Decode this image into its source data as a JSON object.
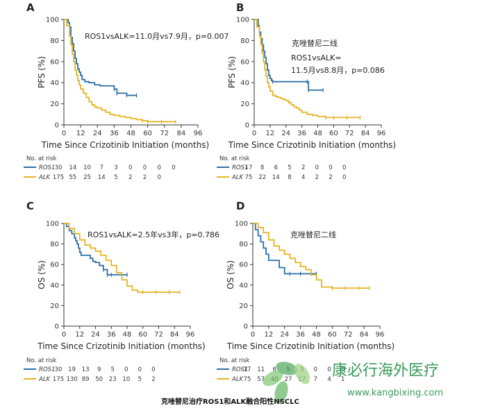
{
  "chart_data": [
    {
      "panel": "A",
      "type": "line",
      "xlabel": "Time Since Crizotinib Initiation (months)",
      "ylabel": "PFS (%)",
      "annotation_lines": [
        "ROS1vsALK=11.0月vs7.9月，p=0.007"
      ],
      "xlim": [
        0,
        96
      ],
      "ylim": [
        0,
        100
      ],
      "xticks": [
        "0",
        "12",
        "24",
        "36",
        "48",
        "60",
        "72",
        "84",
        "96"
      ],
      "yticks": [
        "0",
        "20",
        "40",
        "60",
        "80",
        "100"
      ],
      "series": [
        {
          "name": "ROS1",
          "color": "#2a6fa8",
          "x": [
            0,
            3,
            4,
            5,
            6,
            7,
            8,
            9,
            10,
            11,
            12,
            13,
            15,
            18,
            22,
            26,
            30,
            36,
            38,
            45,
            52
          ],
          "y": [
            100,
            97,
            93,
            83,
            77,
            70,
            63,
            58,
            53,
            50,
            47,
            43,
            41,
            40,
            38,
            37,
            37,
            34,
            30,
            28,
            28
          ]
        },
        {
          "name": "ALK",
          "color": "#e6b422",
          "x": [
            0,
            2,
            4,
            5,
            6,
            7,
            8,
            9,
            10,
            11,
            12,
            14,
            16,
            18,
            20,
            22,
            24,
            27,
            30,
            33,
            36,
            40,
            44,
            48,
            52,
            56,
            60,
            70,
            80
          ],
          "y": [
            100,
            94,
            84,
            76,
            67,
            60,
            52,
            47,
            42,
            38,
            34,
            30,
            26,
            22,
            19,
            17,
            16,
            14,
            12,
            10,
            9,
            8,
            7,
            6,
            5,
            4,
            3,
            3,
            3
          ]
        }
      ],
      "risk_table": {
        "header": "No. at risk",
        "rows": [
          {
            "name": "ROS1",
            "values": [
              "30",
              "14",
              "10",
              "7",
              "3",
              "0",
              "0",
              "0",
              "0"
            ]
          },
          {
            "name": "ALK",
            "values": [
              "175",
              "55",
              "25",
              "14",
              "5",
              "2",
              "2",
              "0",
              ""
            ]
          }
        ]
      }
    },
    {
      "panel": "B",
      "type": "line",
      "xlabel": "Time Since Crizotinib Initiation (months)",
      "ylabel": "PFS (%)",
      "annotation_lines": [
        "克唑替尼二线",
        "ROS1vsALK=",
        "11.5月vs8.8月，p=0.086"
      ],
      "xlim": [
        0,
        96
      ],
      "ylim": [
        0,
        100
      ],
      "xticks": [
        "0",
        "12",
        "24",
        "36",
        "48",
        "60",
        "72",
        "84",
        "96"
      ],
      "yticks": [
        "0",
        "20",
        "40",
        "60",
        "80",
        "100"
      ],
      "series": [
        {
          "name": "ROS1",
          "color": "#2a6fa8",
          "x": [
            0,
            3,
            4,
            5,
            6,
            7,
            8,
            9,
            10,
            11,
            12,
            13,
            14,
            40,
            41,
            52
          ],
          "y": [
            100,
            94,
            88,
            82,
            76,
            70,
            64,
            58,
            52,
            47,
            44,
            42,
            41,
            41,
            33,
            33
          ]
        },
        {
          "name": "ALK",
          "color": "#e6b422",
          "x": [
            0,
            2,
            4,
            5,
            6,
            7,
            8,
            9,
            10,
            11,
            12,
            14,
            16,
            18,
            20,
            22,
            24,
            26,
            28,
            30,
            32,
            34,
            36,
            40,
            44,
            48,
            54,
            60,
            70,
            80
          ],
          "y": [
            100,
            93,
            84,
            76,
            68,
            60,
            52,
            46,
            40,
            36,
            32,
            28,
            27,
            26,
            25,
            24,
            23,
            21,
            19,
            17,
            16,
            14,
            12,
            10,
            9,
            8,
            7,
            7,
            7,
            7
          ]
        }
      ],
      "risk_table": {
        "header": "No. at risk",
        "rows": [
          {
            "name": "ROS1",
            "values": [
              "17",
              "8",
              "6",
              "5",
              "2",
              "0",
              "0",
              "0",
              ""
            ]
          },
          {
            "name": "ALK",
            "values": [
              "75",
              "22",
              "14",
              "8",
              "4",
              "2",
              "2",
              "0",
              ""
            ]
          }
        ]
      }
    },
    {
      "panel": "C",
      "type": "line",
      "xlabel": "Time Since Crizotinib Initiation (months)",
      "ylabel": "OS (%)",
      "annotation_lines": [
        "ROS1vsALK=2.5年vs3年，p=0.786"
      ],
      "xlim": [
        0,
        96
      ],
      "ylim": [
        0,
        100
      ],
      "xticks": [
        "0",
        "12",
        "24",
        "36",
        "48",
        "60",
        "72",
        "84",
        "96"
      ],
      "yticks": [
        "0",
        "20",
        "40",
        "60",
        "80",
        "100"
      ],
      "series": [
        {
          "name": "ROS1",
          "color": "#2a6fa8",
          "x": [
            0,
            2,
            4,
            6,
            8,
            9,
            10,
            11,
            12,
            13,
            18,
            20,
            22,
            24,
            27,
            30,
            33,
            36,
            48
          ],
          "y": [
            100,
            97,
            93,
            90,
            86,
            83,
            80,
            76,
            72,
            69,
            69,
            66,
            63,
            62,
            59,
            55,
            50,
            50,
            50
          ]
        },
        {
          "name": "ALK",
          "color": "#e6b422",
          "x": [
            0,
            4,
            8,
            12,
            16,
            20,
            24,
            28,
            32,
            36,
            40,
            44,
            48,
            52,
            56,
            60,
            70,
            80,
            88
          ],
          "y": [
            100,
            95,
            90,
            84,
            79,
            76,
            73,
            69,
            64,
            59,
            52,
            45,
            39,
            35,
            33,
            33,
            33,
            33,
            33
          ]
        }
      ],
      "risk_table": {
        "header": "No. at risk",
        "rows": [
          {
            "name": "ROS1",
            "values": [
              "30",
              "19",
              "13",
              "9",
              "5",
              "0",
              "0",
              "0",
              ""
            ]
          },
          {
            "name": "ALK",
            "values": [
              "175",
              "130",
              "89",
              "50",
              "23",
              "10",
              "5",
              "2",
              ""
            ]
          }
        ]
      }
    },
    {
      "panel": "D",
      "type": "line",
      "xlabel": "Time Since Crizotinib Initiation (months)",
      "ylabel": "OS (%)",
      "annotation_lines": [
        "克唑替尼二线"
      ],
      "xlim": [
        0,
        96
      ],
      "ylim": [
        0,
        100
      ],
      "xticks": [
        "0",
        "12",
        "24",
        "36",
        "48",
        "60",
        "72",
        "84",
        "96"
      ],
      "yticks": [
        "0",
        "20",
        "40",
        "60",
        "80",
        "100"
      ],
      "series": [
        {
          "name": "ROS1",
          "color": "#2a6fa8",
          "x": [
            0,
            2,
            4,
            6,
            8,
            10,
            12,
            14,
            18,
            20,
            24,
            28,
            36,
            44,
            48
          ],
          "y": [
            100,
            94,
            88,
            82,
            76,
            70,
            64,
            64,
            64,
            57,
            51,
            51,
            51,
            51,
            51
          ]
        },
        {
          "name": "ALK",
          "color": "#e6b422",
          "x": [
            0,
            4,
            8,
            12,
            16,
            20,
            24,
            28,
            32,
            36,
            40,
            44,
            48,
            52,
            60,
            70,
            80,
            88
          ],
          "y": [
            100,
            96,
            91,
            84,
            78,
            74,
            70,
            66,
            62,
            58,
            55,
            50,
            45,
            38,
            37,
            37,
            37,
            37
          ]
        }
      ],
      "risk_table": {
        "header": "No. at risk",
        "rows": [
          {
            "name": "ROS1",
            "values": [
              "17",
              "11",
              "6",
              "5",
              "3",
              "0",
              "0",
              "0",
              ""
            ]
          },
          {
            "name": "ALK",
            "values": [
              "75",
              "57",
              "40",
              "27",
              "17",
              "7",
              "4",
              "1",
              ""
            ]
          }
        ]
      }
    }
  ],
  "caption": "克唑替尼治疗ROS1和ALK融合阳性NSCLC",
  "watermark": {
    "brand": "康必行海外医疗",
    "url": "www.kangbixing.com"
  }
}
